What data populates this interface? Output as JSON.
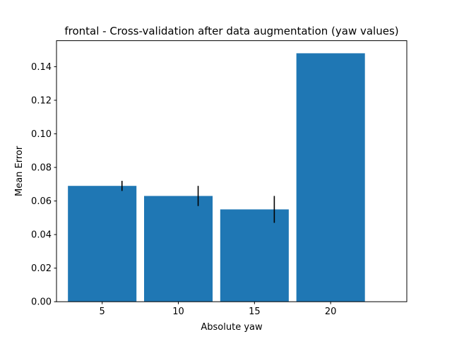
{
  "chart_data": {
    "type": "bar",
    "title": "frontal - Cross-validation after data augmentation (yaw values)",
    "xlabel": "Absolute yaw",
    "ylabel": "Mean Error",
    "x": [
      5,
      10,
      15,
      20
    ],
    "values": [
      0.069,
      0.063,
      0.055,
      0.148
    ],
    "error_low": [
      0.066,
      0.057,
      0.047,
      null
    ],
    "error_high": [
      0.072,
      0.069,
      0.063,
      null
    ],
    "bar_width": 4.5,
    "xlim": [
      2.0,
      25.0
    ],
    "ylim": [
      0.0,
      0.1555
    ],
    "x_ticks": [
      5,
      10,
      15,
      20
    ],
    "x_tick_labels": [
      "5",
      "10",
      "15",
      "20"
    ],
    "y_ticks": [
      0.0,
      0.02,
      0.04,
      0.06,
      0.08,
      0.1,
      0.12,
      0.14
    ],
    "y_tick_labels": [
      "0.00",
      "0.02",
      "0.04",
      "0.06",
      "0.08",
      "0.10",
      "0.12",
      "0.14"
    ],
    "grid": false,
    "legend": "none",
    "bar_color": "#1f77b4",
    "error_color": "#000000"
  }
}
